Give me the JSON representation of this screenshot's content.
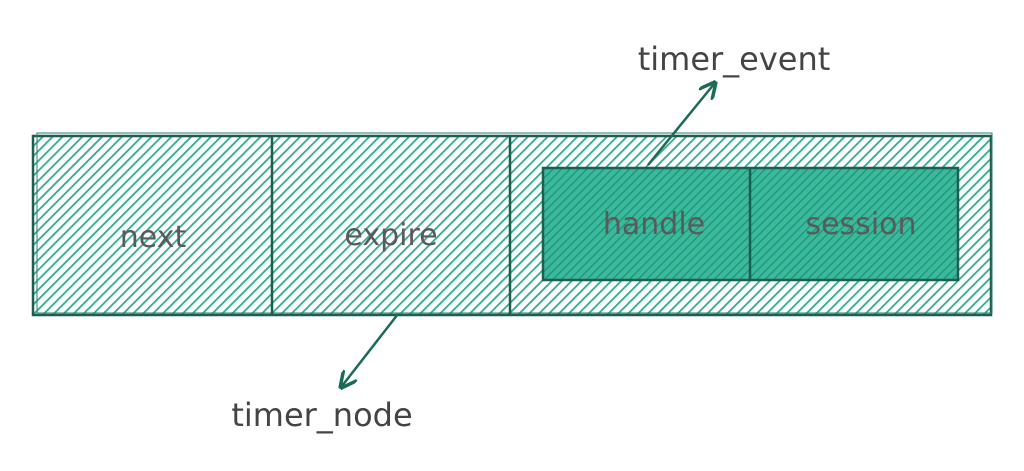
{
  "title_top": "timer_event",
  "title_bottom": "timer_node",
  "fields": {
    "next": "next",
    "expire": "expire"
  },
  "event_fields": {
    "handle": "handle",
    "session": "session"
  },
  "colors": {
    "hatch": "#2eab91",
    "stroke": "#1c5e50",
    "text": "#555555",
    "arrow": "#1c6a58",
    "inner_fill": "#3bb99b"
  }
}
